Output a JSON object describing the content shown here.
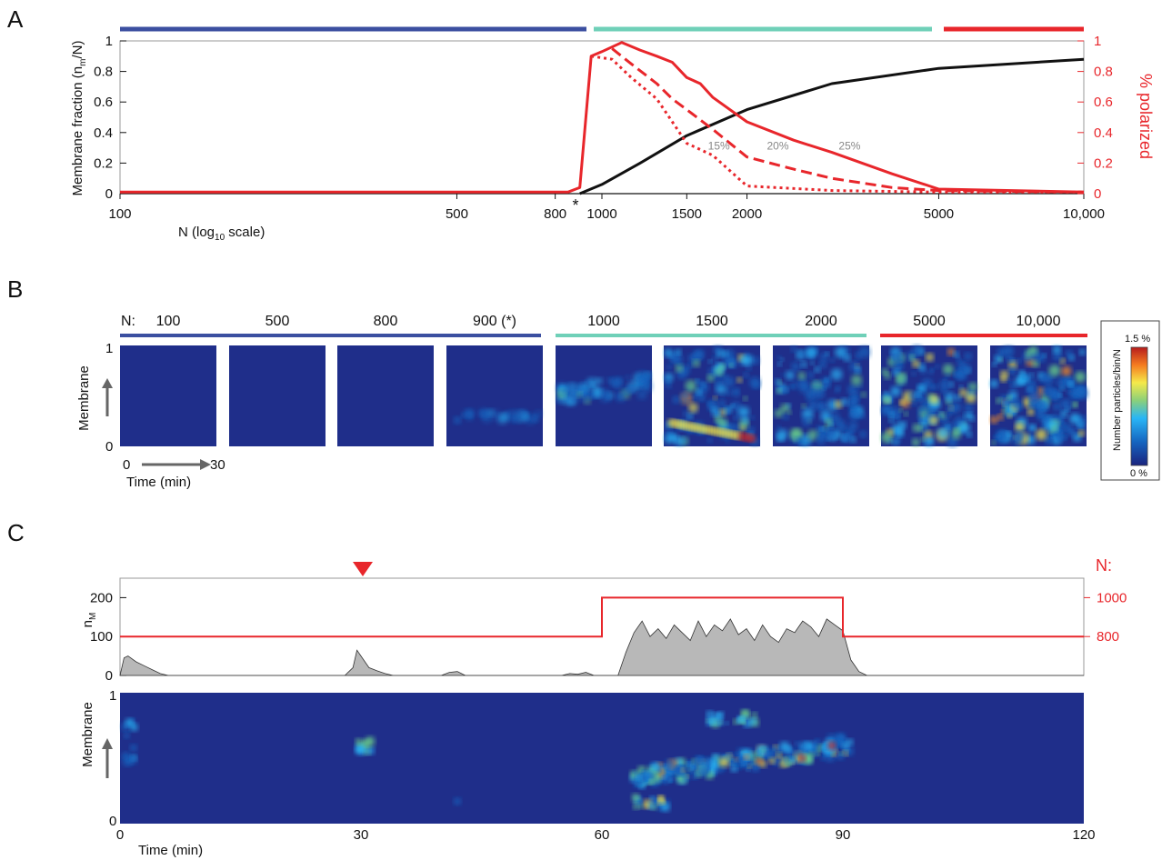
{
  "panels": {
    "a": "A",
    "b": "B",
    "c": "C"
  },
  "colors": {
    "blue": "#3b4fa0",
    "teal": "#6fd0b8",
    "red": "#e8262b",
    "black": "#111111",
    "grey": "#888888",
    "heatLow": "#1f2e8a"
  },
  "chart_data": [
    {
      "type": "line",
      "panel": "A",
      "xlabel_main": "N (log",
      "xlabel_sub": "10",
      "xlabel_tail": " scale)",
      "ylabel": "Membrane fraction (n",
      "ylabel_sub": "m",
      "ylabel_tail": "/N)",
      "y2label": "% polarized",
      "x_scale": "log",
      "xlim": [
        100,
        10000
      ],
      "ylim": [
        0,
        1
      ],
      "x_ticks": [
        100,
        500,
        800,
        1000,
        1500,
        2000,
        5000,
        10000
      ],
      "x_tick_labels": [
        "100",
        "500",
        "800",
        "1000",
        "1500",
        "2000",
        "5000",
        "10,000"
      ],
      "y_ticks": [
        0,
        0.2,
        0.4,
        0.6,
        0.8,
        1
      ],
      "y_tick_labels": [
        "0",
        "0.2",
        "0.4",
        "0.6",
        "0.8",
        "1"
      ],
      "star": "*",
      "star_x": 900,
      "series": [
        {
          "name": "",
          "axis": "left",
          "style": "solid-black",
          "x": [
            900,
            1000,
            1200,
            1500,
            2000,
            3000,
            5000,
            10000
          ],
          "y": [
            0,
            0.06,
            0.2,
            0.38,
            0.55,
            0.72,
            0.82,
            0.88
          ]
        },
        {
          "name": "25%",
          "axis": "right",
          "style": "solid",
          "x": [
            100,
            850,
            900,
            950,
            1000,
            1100,
            1200,
            1300,
            1400,
            1500,
            1600,
            1700,
            2000,
            2500,
            3000,
            4000,
            5000,
            10000
          ],
          "y": [
            0.01,
            0.01,
            0.04,
            0.9,
            0.93,
            0.99,
            0.94,
            0.9,
            0.86,
            0.76,
            0.72,
            0.63,
            0.47,
            0.35,
            0.27,
            0.13,
            0.03,
            0.01
          ]
        },
        {
          "name": "20%",
          "axis": "right",
          "style": "dashed",
          "x": [
            1050,
            1150,
            1300,
            1400,
            1500,
            1700,
            2000,
            2500,
            3000,
            4000,
            5000,
            10000
          ],
          "y": [
            0.95,
            0.85,
            0.72,
            0.62,
            0.55,
            0.42,
            0.24,
            0.16,
            0.1,
            0.04,
            0.02,
            0.01
          ],
          "label_x": 2200,
          "label_y": 0.29
        },
        {
          "name": "15%",
          "axis": "right",
          "style": "dotted",
          "x": [
            950,
            1050,
            1150,
            1300,
            1400,
            1500,
            1700,
            2000,
            3000,
            5000,
            10000
          ],
          "y": [
            0.9,
            0.88,
            0.76,
            0.62,
            0.47,
            0.33,
            0.25,
            0.05,
            0.02,
            0.01,
            0.01
          ],
          "label_x": 1660,
          "label_y": 0.29
        }
      ],
      "label_25_x": 3100,
      "label_25_y": 0.29,
      "y2_ticks": [
        0,
        0.2,
        0.4,
        0.6,
        0.8,
        1
      ],
      "y2_tick_labels": [
        "0",
        "0.2",
        "0.4",
        "0.6",
        "0.8",
        "1"
      ]
    },
    {
      "type": "heatmap",
      "panel": "B",
      "n_prefix": "N:",
      "n_labels": [
        "100",
        "500",
        "800",
        "900 (*)",
        "1000",
        "1500",
        "2000",
        "5000",
        "10,000"
      ],
      "intensity": [
        0,
        0,
        0.02,
        0.12,
        0.35,
        0.7,
        0.7,
        0.8,
        0.9
      ],
      "ylabel": "Membrane",
      "y_top": "1",
      "y_bottom": "0",
      "x_start": "0",
      "x_end": "30",
      "xlabel": "Time (min)",
      "colorbar_label": "Number particles/bin/N",
      "colorbar_max": "1.5 %",
      "colorbar_min": "0 %"
    },
    {
      "type": "area",
      "panel": "C",
      "ylabel": "n",
      "ylabel_sub": "M",
      "y2label": "N:",
      "xlim": [
        0,
        120
      ],
      "ylim": [
        0,
        250
      ],
      "y_ticks": [
        0,
        100,
        200
      ],
      "y_tick_labels": [
        "0",
        "100",
        "200"
      ],
      "y2_ticks": [
        800,
        1000
      ],
      "y2_tick_labels": [
        "800",
        "1000"
      ],
      "y2_map": {
        "800": 100,
        "1000": 200
      },
      "x_ticks": [
        0,
        30,
        60,
        90,
        120
      ],
      "x_tick_labels": [
        "0",
        "30",
        "60",
        "90",
        "120"
      ],
      "xlabel": "Time (min)",
      "marker_time": 30,
      "n_steps": {
        "x": [
          0,
          60,
          60,
          90,
          90,
          120
        ],
        "N": [
          800,
          800,
          1000,
          1000,
          800,
          800
        ]
      },
      "nm_series": {
        "x": [
          0,
          0.5,
          1,
          2,
          3,
          4,
          5,
          6,
          28,
          29,
          29.5,
          30,
          31,
          32,
          33,
          34,
          40,
          41,
          42,
          43,
          55,
          56,
          57,
          58,
          59,
          62,
          63,
          64,
          65,
          66,
          67,
          68,
          69,
          70,
          71,
          72,
          73,
          74,
          75,
          76,
          77,
          78,
          79,
          80,
          81,
          82,
          83,
          84,
          85,
          86,
          87,
          88,
          89,
          90,
          91,
          92,
          93,
          120
        ],
        "y": [
          0,
          45,
          50,
          35,
          25,
          15,
          5,
          0,
          0,
          20,
          65,
          50,
          20,
          12,
          5,
          0,
          0,
          8,
          10,
          0,
          0,
          5,
          3,
          8,
          0,
          0,
          60,
          110,
          140,
          100,
          120,
          95,
          130,
          110,
          90,
          140,
          100,
          130,
          115,
          145,
          105,
          120,
          90,
          130,
          100,
          85,
          120,
          110,
          140,
          125,
          100,
          145,
          130,
          115,
          40,
          10,
          0,
          0
        ]
      },
      "heat_ylabel": "Membrane",
      "heat_y_top": "1",
      "heat_y_bottom": "0"
    }
  ]
}
